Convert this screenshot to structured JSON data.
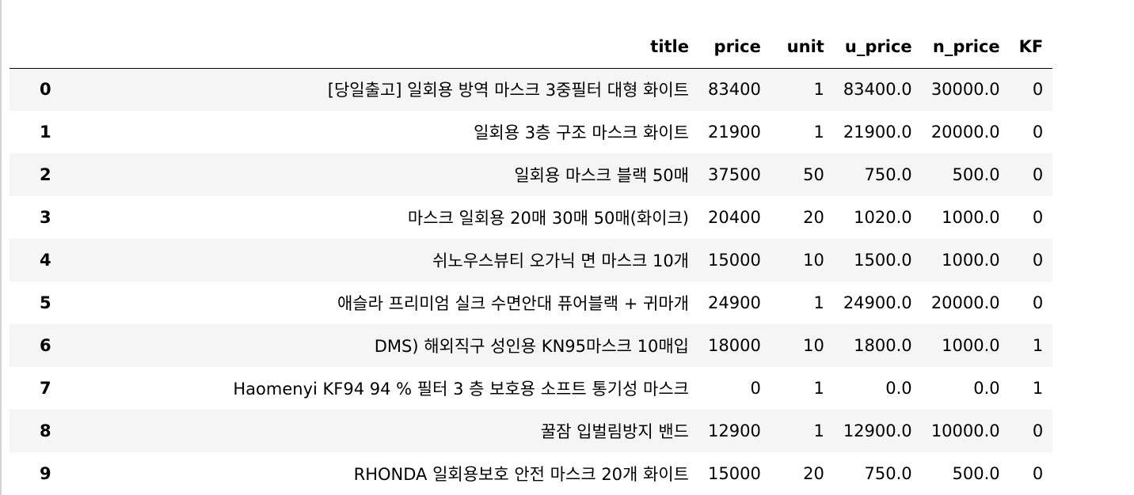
{
  "columns": [
    "title",
    "price",
    "unit",
    "u_price",
    "n_price",
    "KF"
  ],
  "rows": [
    {
      "index": "0",
      "title": "[당일출고] 일회용 방역 마스크 3중필터 대형 화이트",
      "price": "83400",
      "unit": "1",
      "u_price": "83400.0",
      "n_price": "30000.0",
      "KF": "0"
    },
    {
      "index": "1",
      "title": "일회용 3층 구조 마스크 화이트",
      "price": "21900",
      "unit": "1",
      "u_price": "21900.0",
      "n_price": "20000.0",
      "KF": "0"
    },
    {
      "index": "2",
      "title": "일회용 마스크 블랙 50매",
      "price": "37500",
      "unit": "50",
      "u_price": "750.0",
      "n_price": "500.0",
      "KF": "0"
    },
    {
      "index": "3",
      "title": "마스크 일회용 20매 30매 50매(화이크)",
      "price": "20400",
      "unit": "20",
      "u_price": "1020.0",
      "n_price": "1000.0",
      "KF": "0"
    },
    {
      "index": "4",
      "title": "쉬노우스뷰티 오가닉 면 마스크 10개",
      "price": "15000",
      "unit": "10",
      "u_price": "1500.0",
      "n_price": "1000.0",
      "KF": "0"
    },
    {
      "index": "5",
      "title": "애슬라 프리미엄 실크 수면안대 퓨어블랙 + 귀마개",
      "price": "24900",
      "unit": "1",
      "u_price": "24900.0",
      "n_price": "20000.0",
      "KF": "0"
    },
    {
      "index": "6",
      "title": "DMS) 해외직구 성인용 KN95마스크 10매입",
      "price": "18000",
      "unit": "10",
      "u_price": "1800.0",
      "n_price": "1000.0",
      "KF": "1"
    },
    {
      "index": "7",
      "title": "Haomenyi KF94 94 % 필터 3 층 보호용 소프트 통기성 마스크",
      "price": "0",
      "unit": "1",
      "u_price": "0.0",
      "n_price": "0.0",
      "KF": "1"
    },
    {
      "index": "8",
      "title": "꿀잠 입벌림방지 밴드",
      "price": "12900",
      "unit": "1",
      "u_price": "12900.0",
      "n_price": "10000.0",
      "KF": "0"
    },
    {
      "index": "9",
      "title": "RHONDA 일회용보호 안전 마스크 20개 화이트",
      "price": "15000",
      "unit": "20",
      "u_price": "750.0",
      "n_price": "500.0",
      "KF": "0"
    }
  ]
}
